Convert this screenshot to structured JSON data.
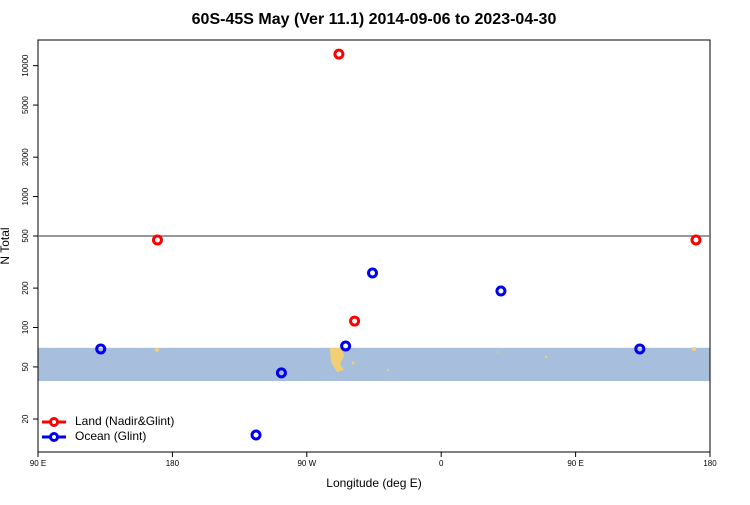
{
  "chart_data": {
    "type": "scatter",
    "title": "60S-45S May (Ver 11.1)   2014-09-06 to 2023-04-30",
    "x_label": "Longitude (deg E)",
    "y_label": "N Total",
    "log_y": true,
    "xlim": [
      90,
      540
    ],
    "ylim": [
      11.2,
      15700
    ],
    "xticks": [
      {
        "value": 90,
        "label": "90 E"
      },
      {
        "value": 180,
        "label": "180"
      },
      {
        "value": 270,
        "label": "90 W"
      },
      {
        "value": 360,
        "label": "0"
      },
      {
        "value": 450,
        "label": "90 E"
      },
      {
        "value": 540,
        "label": "180"
      }
    ],
    "yticks": [
      20,
      50,
      100,
      200,
      500,
      1000,
      2000,
      5000,
      10000
    ],
    "reference_line": 500,
    "reference_line_color": "#777777",
    "shaded_band": [
      39,
      70
    ],
    "shaded_band_color": "#a8bedd",
    "legend": "bottom-left",
    "series": [
      {
        "name": "Land (Nadir&Glint)",
        "color": "#ff0000",
        "x": [
          170,
          291.5,
          302,
          530.6
        ],
        "values": [
          466,
          12250,
          112,
          466
        ]
      },
      {
        "name": "Ocean (Glint)",
        "color": "#0000ee",
        "x": [
          132,
          236,
          253,
          296,
          314,
          400,
          493
        ],
        "values": [
          68.6,
          15.1,
          45,
          72.3,
          261,
          190,
          68.6
        ]
      }
    ]
  }
}
